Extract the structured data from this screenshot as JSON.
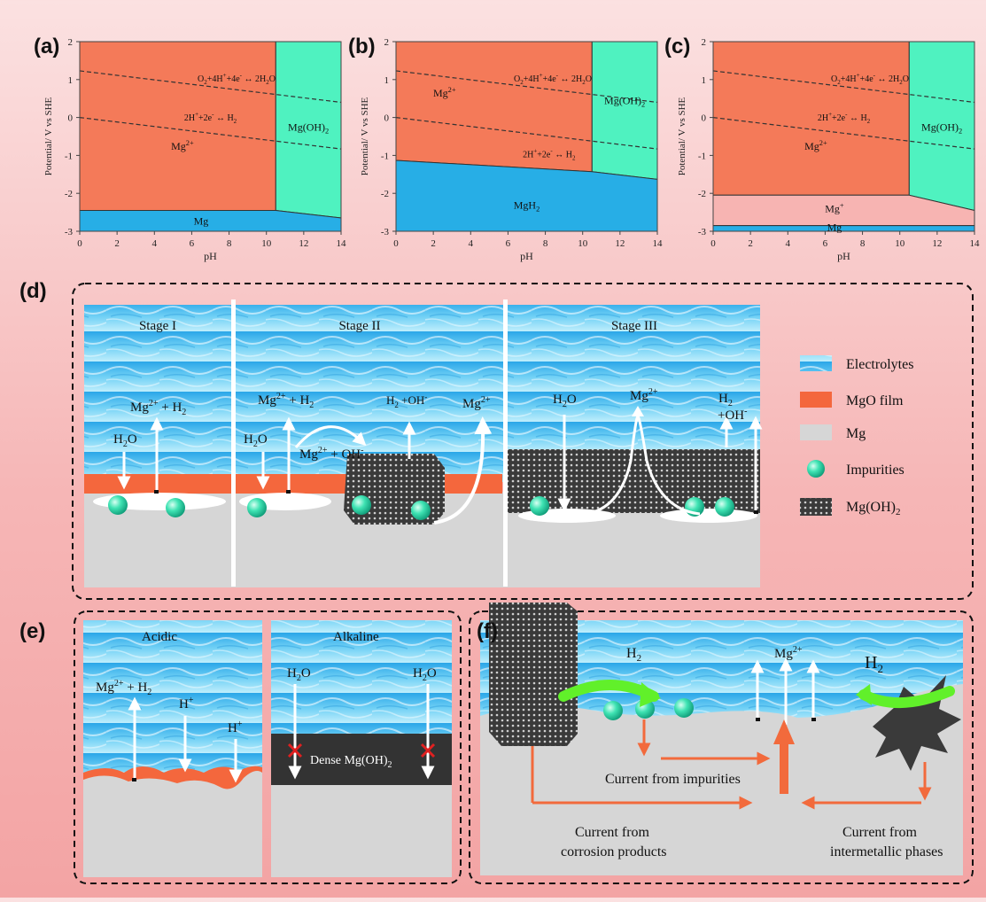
{
  "panels": {
    "a": "(a)",
    "b": "(b)",
    "c": "(c)",
    "d": "(d)",
    "e": "(e)",
    "f": "(f)"
  },
  "colors": {
    "mg2_region": "#f47a59",
    "mgoh2_region": "#4ff2c0",
    "mg_region": "#27aee6",
    "mgplus_region": "#f7b4b2",
    "mgo_film": "#f4673d",
    "metal": "#d6d6d6",
    "arrow_orange": "#f26a3c",
    "arrow_green": "#61f02a",
    "impurity": "#3fe3b3"
  },
  "chart_data": [
    {
      "type": "area",
      "panel": "(a)",
      "xlabel": "pH",
      "ylabel": "Potential/ V vs SHE",
      "xlim": [
        0,
        14
      ],
      "ylim": [
        -3,
        2
      ],
      "xticks": [
        "0",
        "2",
        "4",
        "6",
        "8",
        "10",
        "12",
        "14"
      ],
      "yticks": [
        "-3",
        "-2",
        "-1",
        "0",
        "1",
        "2"
      ],
      "regions": [
        {
          "label": "Mg2+",
          "sup": "2+",
          "base": "Mg",
          "color_key": "mg2_region",
          "polygon": [
            [
              0,
              2
            ],
            [
              10.5,
              2
            ],
            [
              10.5,
              -2.45
            ],
            [
              0,
              -2.45
            ]
          ]
        },
        {
          "label": "Mg(OH)2",
          "color_key": "mgoh2_region",
          "polygon": [
            [
              10.5,
              2
            ],
            [
              14,
              2
            ],
            [
              14,
              -2.65
            ],
            [
              10.5,
              -2.45
            ]
          ]
        },
        {
          "label": "Mg",
          "color_key": "mg_region",
          "polygon": [
            [
              0,
              -2.45
            ],
            [
              10.5,
              -2.45
            ],
            [
              14,
              -2.65
            ],
            [
              14,
              -3
            ],
            [
              0,
              -3
            ]
          ]
        }
      ],
      "dashed_lines": [
        {
          "label": "O2+4H+ +4e- ↔ 2H2O",
          "points": [
            [
              0,
              1.23
            ],
            [
              14,
              0.4
            ]
          ]
        },
        {
          "label": "2H+ +2e- ↔ H2",
          "points": [
            [
              0,
              0
            ],
            [
              14,
              -0.83
            ]
          ]
        }
      ],
      "labels": {
        "region1": "Mg",
        "region1_sup": "2+",
        "region2": "Mg(OH)",
        "region2_sub": "2",
        "region3": "Mg",
        "eq1_a": "O",
        "eq1_b": "+4H",
        "eq1_c": "+4e",
        "eq1_d": " ↔ 2H",
        "eq1_e": "O",
        "eq2_a": "2H",
        "eq2_b": "+2e",
        "eq2_c": " ↔ H"
      }
    },
    {
      "type": "area",
      "panel": "(b)",
      "xlabel": "pH",
      "ylabel": "Potential/ V vs SHE",
      "xlim": [
        0,
        14
      ],
      "ylim": [
        -3,
        2
      ],
      "xticks": [
        "0",
        "2",
        "4",
        "6",
        "8",
        "10",
        "12",
        "14"
      ],
      "yticks": [
        "-3",
        "-2",
        "-1",
        "0",
        "1",
        "2"
      ],
      "regions": [
        {
          "label": "Mg2+",
          "color_key": "mg2_region",
          "polygon": [
            [
              0,
              2
            ],
            [
              10.5,
              2
            ],
            [
              10.5,
              -1.43
            ],
            [
              0,
              -1.13
            ]
          ]
        },
        {
          "label": "Mg(OH)2",
          "color_key": "mgoh2_region",
          "polygon": [
            [
              10.5,
              2
            ],
            [
              14,
              2
            ],
            [
              14,
              -1.63
            ],
            [
              10.5,
              -1.43
            ]
          ]
        },
        {
          "label": "MgH2",
          "color_key": "mg_region",
          "polygon": [
            [
              0,
              -1.13
            ],
            [
              10.5,
              -1.43
            ],
            [
              14,
              -1.63
            ],
            [
              14,
              -3
            ],
            [
              0,
              -3
            ]
          ]
        }
      ],
      "dashed_lines": [
        {
          "label": "O2+4H+ +4e- ↔ 2H2O",
          "points": [
            [
              0,
              1.23
            ],
            [
              14,
              0.4
            ]
          ]
        },
        {
          "label": "2H+ +2e- ↔ H2",
          "points": [
            [
              0,
              0
            ],
            [
              14,
              -0.83
            ]
          ]
        }
      ],
      "labels": {
        "region1": "Mg",
        "region1_sup": "2+",
        "region2": "Mg(OH)",
        "region2_sub": "2",
        "region3": "MgH",
        "region3_sub": "2",
        "eq1_a": "O",
        "eq1_b": "+4H",
        "eq1_c": "+4e",
        "eq1_d": " ↔ 2H",
        "eq1_e": "O",
        "eq2_a": "2H",
        "eq2_b": "+2e",
        "eq2_c": " ↔ H"
      }
    },
    {
      "type": "area",
      "panel": "(c)",
      "xlabel": "pH",
      "ylabel": "Potential/ V vs SHE",
      "xlim": [
        0,
        14
      ],
      "ylim": [
        -3,
        2
      ],
      "xticks": [
        "0",
        "2",
        "4",
        "6",
        "8",
        "10",
        "12",
        "14"
      ],
      "yticks": [
        "-3",
        "-2",
        "-1",
        "0",
        "1",
        "2"
      ],
      "regions": [
        {
          "label": "Mg2+",
          "color_key": "mg2_region",
          "polygon": [
            [
              0,
              2
            ],
            [
              10.5,
              2
            ],
            [
              10.5,
              -2.05
            ],
            [
              0,
              -2.05
            ]
          ]
        },
        {
          "label": "Mg(OH)2",
          "color_key": "mgoh2_region",
          "polygon": [
            [
              10.5,
              2
            ],
            [
              14,
              2
            ],
            [
              14,
              -2.45
            ],
            [
              10.5,
              -2.05
            ]
          ]
        },
        {
          "label": "Mg+",
          "color_key": "mgplus_region",
          "polygon": [
            [
              0,
              -2.05
            ],
            [
              10.5,
              -2.05
            ],
            [
              14,
              -2.45
            ],
            [
              14,
              -2.85
            ],
            [
              0,
              -2.85
            ]
          ]
        },
        {
          "label": "Mg",
          "color_key": "mg_region",
          "polygon": [
            [
              0,
              -2.85
            ],
            [
              14,
              -2.85
            ],
            [
              14,
              -3
            ],
            [
              0,
              -3
            ]
          ]
        }
      ],
      "dashed_lines": [
        {
          "label": "O2+4H+ +4e- ↔ 2H2O",
          "points": [
            [
              0,
              1.23
            ],
            [
              14,
              0.4
            ]
          ]
        },
        {
          "label": "2H+ +2e- ↔ H2",
          "points": [
            [
              0,
              0
            ],
            [
              14,
              -0.83
            ]
          ]
        }
      ],
      "labels": {
        "region1": "Mg",
        "region1_sup": "2+",
        "region2": "Mg(OH)",
        "region2_sub": "2",
        "region3": "Mg",
        "region3_sup": "+",
        "region4": "Mg",
        "eq1_a": "O",
        "eq1_b": "+4H",
        "eq1_c": "+4e",
        "eq1_d": " ↔ 2H",
        "eq1_e": "O",
        "eq2_a": "2H",
        "eq2_b": "+2e",
        "eq2_c": " ↔ H"
      }
    }
  ],
  "panel_d": {
    "stages": [
      "Stage I",
      "Stage II",
      "Stage III"
    ],
    "legend": [
      "Electrolytes",
      "MgO film",
      "Mg",
      "Impurities",
      "Mg(OH)"
    ],
    "legend_sub": "2",
    "labels": {
      "mg2_h2_1": "Mg",
      "mg2_h2_1_sup": "2+",
      "mg2_h2_1_tail": " + H",
      "mg2_h2_1_sub": "2",
      "h2o": "H",
      "h2o_sub": "2",
      "h2o_tail": "O",
      "mg2_oh": "Mg",
      "mg2_oh_sup": "2+",
      "mg2_oh_tail": " + OH",
      "mg2_oh_sup2": "-",
      "h2_oh": "H",
      "h2_oh_sub": "2",
      "h2_oh_tail": " +OH",
      "h2_oh_sup": "-",
      "mg2": "Mg",
      "mg2_sup": "2+",
      "oh": "+OH",
      "oh_sup": "-"
    }
  },
  "panel_e": {
    "acidic": "Acidic",
    "alkaline": "Alkaline",
    "dense": "Dense Mg(OH)",
    "dense_sub": "2",
    "hplus": "H",
    "hplus_sup": "+"
  },
  "panel_f": {
    "h2": "H",
    "h2_sub": "2",
    "mg2": "Mg",
    "mg2_sup": "2+",
    "current_impurities": "Current from impurities",
    "current_corrosion_1": "Current from",
    "current_corrosion_2": "corrosion products",
    "current_intermetallic_1": "Current from",
    "current_intermetallic_2": "intermetallic phases"
  }
}
